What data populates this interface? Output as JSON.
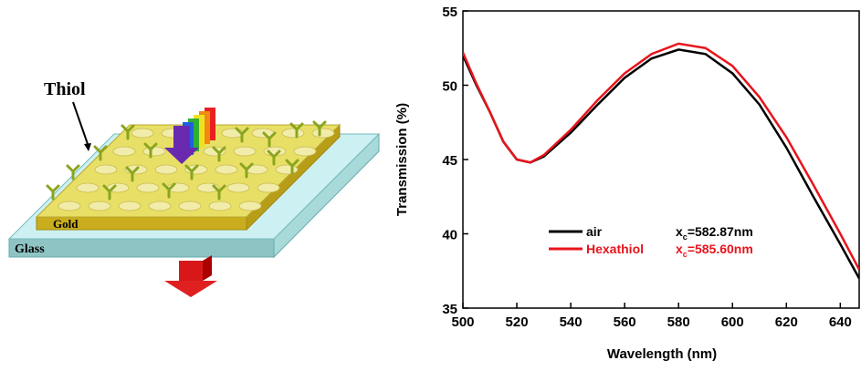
{
  "diagram": {
    "labels": {
      "thiol": "Thiol",
      "gold": "Gold",
      "glass": "Glass"
    }
  },
  "chart_data": {
    "type": "line",
    "x_label": "Wavelength (nm)",
    "y_label": "Transmission (%)",
    "x": [
      500,
      505,
      510,
      515,
      520,
      525,
      530,
      540,
      550,
      560,
      570,
      580,
      590,
      600,
      610,
      620,
      630,
      640,
      647
    ],
    "series": [
      {
        "name": "air",
        "color": "#000000",
        "note": {
          "base": "x",
          "sub": "c",
          "rest": "=582.87nm"
        },
        "values": [
          52.0,
          50.0,
          48.2,
          46.2,
          45.0,
          44.8,
          45.2,
          46.8,
          48.7,
          50.5,
          51.8,
          52.4,
          52.1,
          50.8,
          48.7,
          45.8,
          42.5,
          39.3,
          37.0
        ]
      },
      {
        "name": "Hexathiol",
        "color": "#e8141c",
        "note": {
          "base": "x",
          "sub": "c",
          "rest": "=585.60nm"
        },
        "values": [
          52.2,
          50.1,
          48.2,
          46.2,
          45.0,
          44.8,
          45.3,
          47.0,
          49.0,
          50.8,
          52.1,
          52.8,
          52.5,
          51.3,
          49.2,
          46.5,
          43.3,
          40.0,
          37.6
        ]
      }
    ],
    "xlim": [
      500,
      647
    ],
    "ylim": [
      35,
      55
    ],
    "xticks": [
      500,
      520,
      540,
      560,
      580,
      600,
      620,
      640
    ],
    "yticks": [
      35,
      40,
      45,
      50,
      55
    ]
  }
}
